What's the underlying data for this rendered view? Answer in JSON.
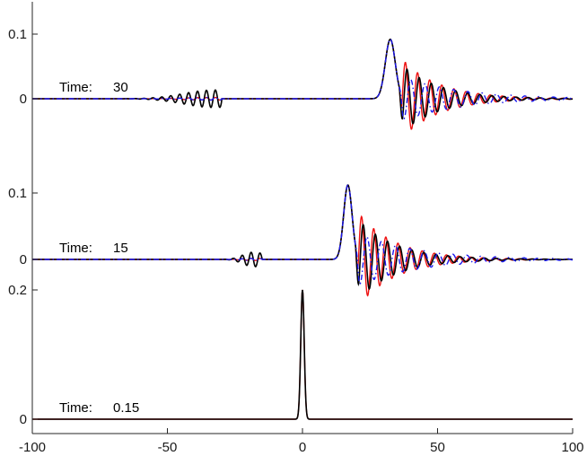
{
  "chart_data": {
    "type": "line",
    "xlabel": "",
    "ylabel": "",
    "grid": false,
    "x_axis": {
      "range": [
        -100,
        100
      ],
      "ticks": [
        -100,
        -50,
        0,
        50,
        100
      ],
      "tick_labels": [
        "-100",
        "-50",
        "0",
        "50",
        "100"
      ]
    },
    "colors": {
      "red": "#ee1111",
      "black": "#000000",
      "blue": "#1a1aee"
    },
    "panels": [
      {
        "annotation": {
          "label": "Time:",
          "value": "30"
        },
        "y_range": [
          -0.05,
          0.13
        ],
        "y_ticks": [
          0,
          0.1
        ],
        "y_tick_labels": [
          "0",
          "0.1"
        ],
        "main_pulse": {
          "center": 32.5,
          "amplitude": 0.092,
          "width": 2.6
        },
        "trough": -0.065,
        "leading_packet": {
          "center": -42,
          "extent": [
            -75,
            -30
          ],
          "amplitude": 0.013
        },
        "series": [
          {
            "color": "red",
            "style": "solid"
          },
          {
            "color": "black",
            "style": "solid"
          },
          {
            "color": "blue",
            "style": "dash-dot"
          }
        ]
      },
      {
        "annotation": {
          "label": "Time:",
          "value": "15"
        },
        "y_range": [
          -0.085,
          0.13
        ],
        "y_ticks": [
          0,
          0.1
        ],
        "y_tick_labels": [
          "0",
          "0.1"
        ],
        "main_pulse": {
          "center": 16.8,
          "amplitude": 0.112,
          "width": 2.2
        },
        "trough": -0.075,
        "leading_packet": {
          "center": -22,
          "extent": [
            -32,
            -15
          ],
          "amplitude": 0.016
        },
        "series": [
          {
            "color": "red",
            "style": "solid"
          },
          {
            "color": "black",
            "style": "solid"
          },
          {
            "color": "blue",
            "style": "dash-dot"
          }
        ]
      },
      {
        "annotation": {
          "label": "Time:",
          "value": "0.15"
        },
        "y_range": [
          -0.005,
          0.225
        ],
        "y_ticks": [
          0,
          0.2
        ],
        "y_tick_labels": [
          "0",
          "0.2"
        ],
        "main_pulse": {
          "center": 0,
          "amplitude": 0.2,
          "width": 0.9
        },
        "series": [
          {
            "color": "red",
            "style": "solid"
          },
          {
            "color": "black",
            "style": "solid"
          }
        ]
      }
    ]
  }
}
